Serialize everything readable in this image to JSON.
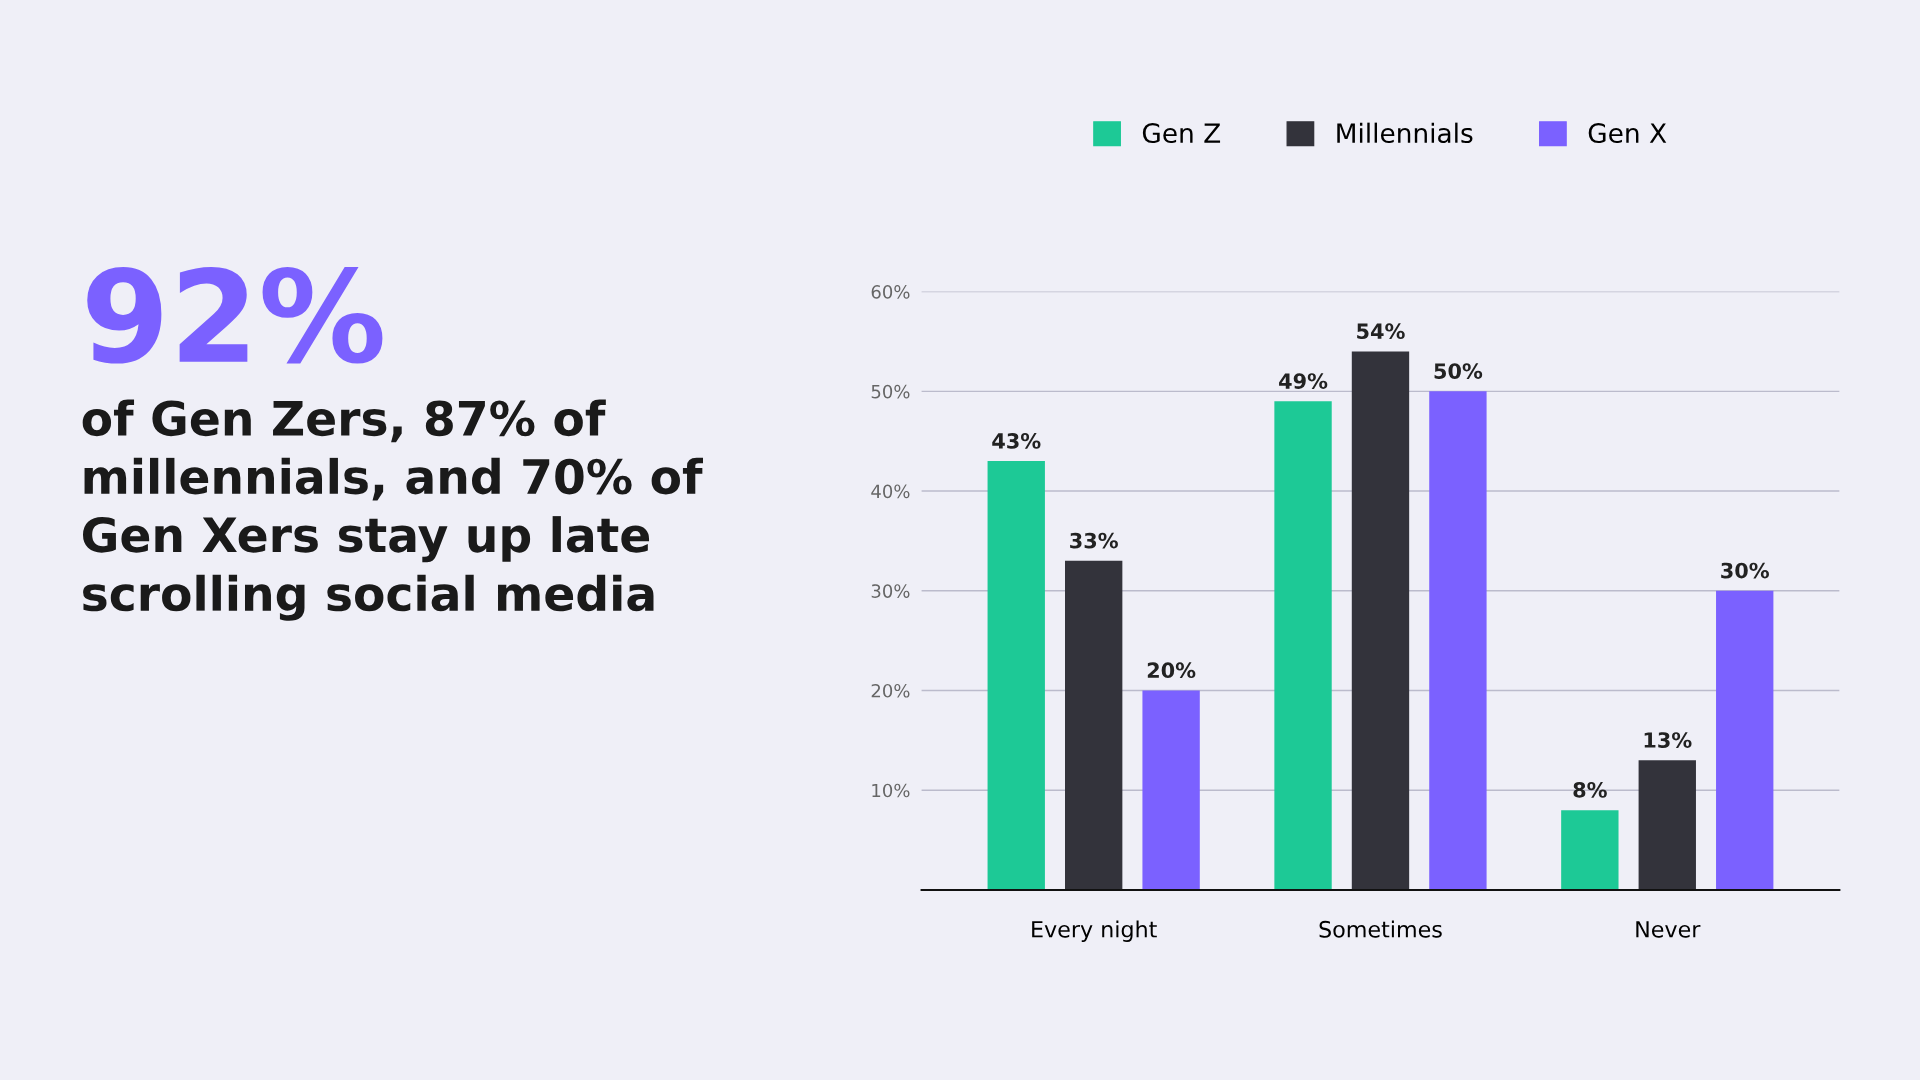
{
  "chart_data": {
    "type": "bar",
    "title": "92%",
    "subtitle": "of Gen Zers, 87% of\nmillennials, and 70% of\nGen Xers stay up late\nscrolling social media",
    "categories": [
      "Every night",
      "Sometimes",
      "Never"
    ],
    "series": [
      {
        "name": "Gen Z",
        "color": "#1dc996",
        "values": [
          43,
          49,
          8
        ],
        "value_labels": [
          "43%",
          "49%",
          "8%"
        ]
      },
      {
        "name": "Millennials",
        "color": "#33333b",
        "values": [
          33,
          54,
          13
        ],
        "value_labels": [
          "33%",
          "54%",
          "13%"
        ]
      },
      {
        "name": "Gen X",
        "color": "#7b61ff",
        "values": [
          20,
          50,
          30
        ],
        "value_labels": [
          "20%",
          "50%",
          "30%"
        ]
      }
    ],
    "ylim": [
      0,
      60
    ],
    "yticks": [
      {
        "value": 10,
        "label": "10%"
      },
      {
        "value": 20,
        "label": "20%"
      },
      {
        "value": 30,
        "label": "30%"
      },
      {
        "value": 40,
        "label": "40%"
      },
      {
        "value": 50,
        "label": "50%"
      },
      {
        "value": 60,
        "label": "60%"
      }
    ],
    "grid": "y",
    "legend": "top"
  }
}
